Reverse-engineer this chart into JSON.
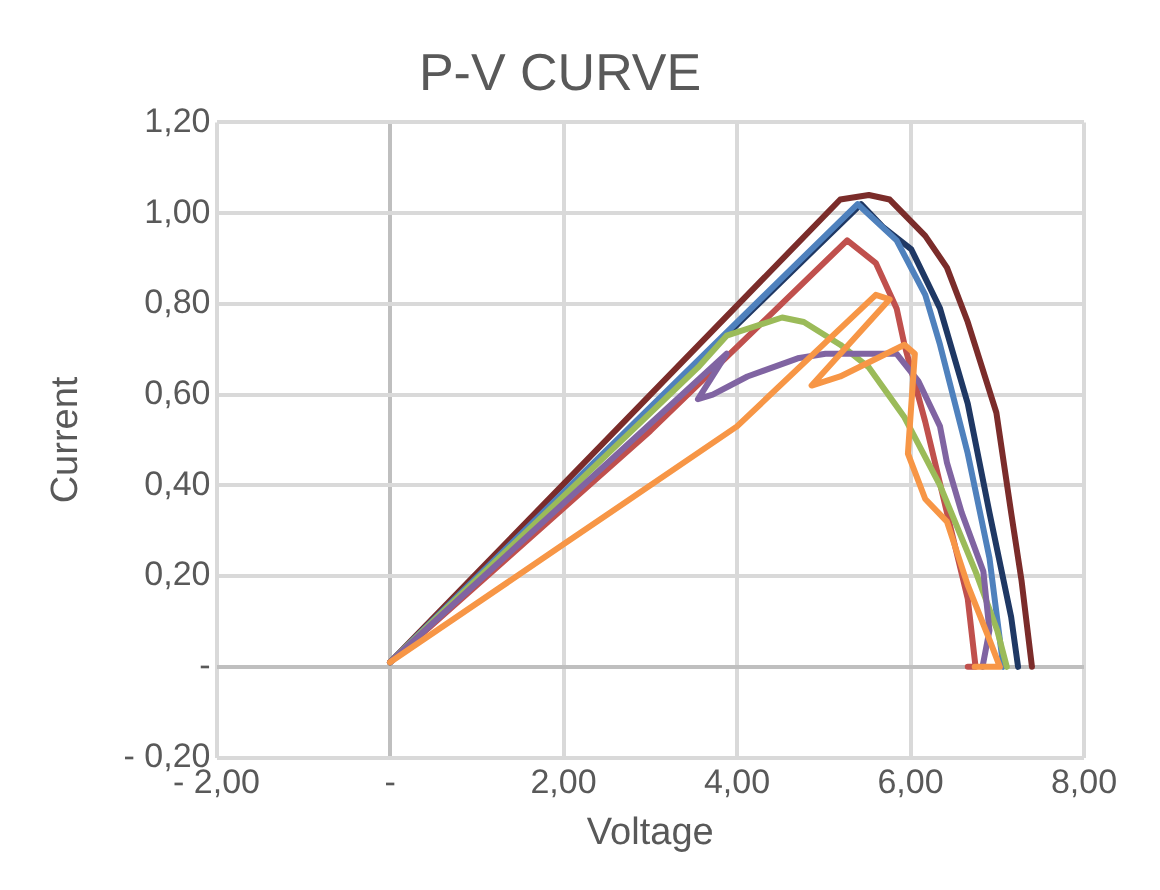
{
  "chart_data": {
    "type": "line",
    "title": "P-V CURVE",
    "xlabel": "Voltage",
    "ylabel": "Current",
    "xlim": [
      -2,
      8
    ],
    "xticks": [
      {
        "value": -2,
        "label": "- 2,00"
      },
      {
        "value": 0,
        "label": "-"
      },
      {
        "value": 2,
        "label": "2,00"
      },
      {
        "value": 4,
        "label": "4,00"
      },
      {
        "value": 6,
        "label": "6,00"
      },
      {
        "value": 8,
        "label": "8,00"
      }
    ],
    "ylim": [
      -0.2,
      1.2
    ],
    "yticks": [
      {
        "value": -0.2,
        "label": "- 0,20"
      },
      {
        "value": 0,
        "label": "-"
      },
      {
        "value": 0.2,
        "label": "0,20"
      },
      {
        "value": 0.4,
        "label": "0,40"
      },
      {
        "value": 0.6,
        "label": "0,60"
      },
      {
        "value": 0.8,
        "label": "0,80"
      },
      {
        "value": 1.0,
        "label": "1,00"
      },
      {
        "value": 1.2,
        "label": "1,20"
      }
    ],
    "grid": true,
    "legend": false,
    "marker": "none",
    "line_style": "solid",
    "series": [
      {
        "color": "#f79646",
        "x": [
          0,
          2,
          4,
          5.6,
          5.76,
          4.86,
          5.19,
          5.93,
          6.05,
          6.01,
          5.97,
          6.17,
          6.42,
          6.66,
          6.91,
          7.03,
          6.74
        ],
        "values": [
          0.01,
          0.27,
          0.53,
          0.82,
          0.81,
          0.62,
          0.64,
          0.71,
          0.69,
          0.58,
          0.47,
          0.37,
          0.32,
          0.18,
          0.06,
          0,
          0
        ]
      },
      {
        "color": "#8064a2",
        "x": [
          0,
          3.88,
          3.55,
          3.72,
          4.12,
          4.7,
          5.02,
          5.52,
          5.84,
          6.09,
          6.34,
          6.42,
          6.59,
          6.84,
          6.91,
          6.83
        ],
        "values": [
          0.01,
          0.69,
          0.59,
          0.6,
          0.64,
          0.68,
          0.69,
          0.69,
          0.69,
          0.63,
          0.53,
          0.45,
          0.34,
          0.21,
          0.08,
          0
        ]
      },
      {
        "color": "#9bbb59",
        "x": [
          0,
          3.55,
          3.88,
          4.52,
          4.77,
          5.19,
          5.52,
          5.93,
          6.34,
          6.75,
          7.0,
          7.11
        ],
        "values": [
          0.01,
          0.66,
          0.73,
          0.77,
          0.76,
          0.71,
          0.66,
          0.55,
          0.4,
          0.21,
          0.08,
          0
        ]
      },
      {
        "color": "#c0504d",
        "x": [
          0,
          3.0,
          5.27,
          5.6,
          5.84,
          5.93,
          6.17,
          6.42,
          6.66,
          6.75,
          6.66
        ],
        "values": [
          0.01,
          0.52,
          0.94,
          0.89,
          0.79,
          0.71,
          0.54,
          0.34,
          0.15,
          0,
          0
        ]
      },
      {
        "color": "#4f81bd",
        "x": [
          0,
          5.39,
          5.84,
          6.17,
          6.34,
          6.66,
          6.91,
          7.07
        ],
        "values": [
          0.01,
          1.02,
          0.94,
          0.82,
          0.71,
          0.47,
          0.24,
          0
        ]
      },
      {
        "color": "#1f3864",
        "x": [
          0,
          5.43,
          5.68,
          6.01,
          6.34,
          6.66,
          6.91,
          7.16,
          7.24
        ],
        "values": [
          0.01,
          1.02,
          0.97,
          0.92,
          0.79,
          0.58,
          0.34,
          0.11,
          0
        ]
      },
      {
        "color": "#7b2c2a",
        "x": [
          0,
          5.19,
          5.52,
          5.76,
          6.17,
          6.42,
          6.66,
          6.99,
          7.16,
          7.28,
          7.4
        ],
        "values": [
          0.01,
          1.03,
          1.04,
          1.03,
          0.95,
          0.88,
          0.76,
          0.56,
          0.34,
          0.19,
          0
        ]
      }
    ]
  }
}
